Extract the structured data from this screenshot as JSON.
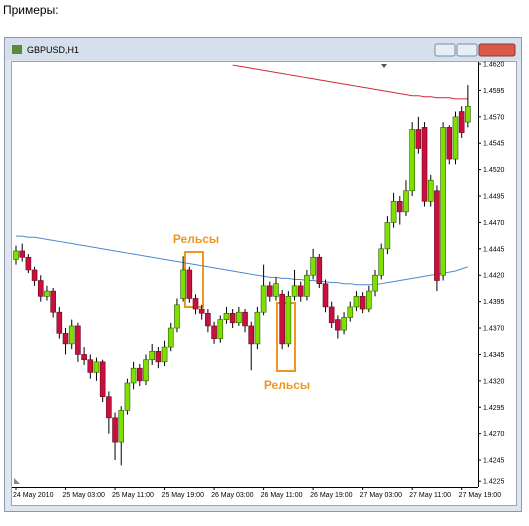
{
  "header": "Примеры:",
  "window_title": "GBPUSD,H1",
  "chart_data": {
    "type": "candlestick",
    "categories": [
      "24 May 2010",
      null,
      null,
      null,
      null,
      null,
      null,
      null,
      "25 May 03:00",
      null,
      null,
      null,
      null,
      null,
      null,
      null,
      "25 May 11:00",
      null,
      null,
      null,
      null,
      null,
      null,
      null,
      "25 May 19:00",
      null,
      null,
      null,
      null,
      null,
      null,
      null,
      "26 May 03:00",
      null,
      null,
      null,
      null,
      null,
      null,
      null,
      "26 May 11:00",
      null,
      null,
      null,
      null,
      null,
      null,
      null,
      "26 May 19:00",
      null,
      null,
      null,
      null,
      null,
      null,
      null,
      "27 May 03:00",
      null,
      null,
      null,
      null,
      null,
      null,
      null,
      "27 May 11:00",
      null,
      null,
      null,
      null,
      null,
      null,
      null,
      "27 May 19:00",
      null
    ],
    "open": [
      1.4435,
      1.4443,
      1.4437,
      1.4425,
      1.4415,
      1.44,
      1.4405,
      1.4385,
      1.4365,
      1.4355,
      1.4372,
      1.4345,
      1.434,
      1.4328,
      1.4338,
      1.4305,
      1.4285,
      1.4262,
      1.4292,
      1.4318,
      1.4332,
      1.432,
      1.434,
      1.4348,
      1.4338,
      1.4352,
      1.437,
      1.4398,
      1.4425,
      1.4398,
      1.4388,
      1.4384,
      1.4372,
      1.436,
      1.4378,
      1.4384,
      1.4375,
      1.4385,
      1.4372,
      1.4355,
      1.4385,
      1.441,
      1.44,
      1.4402,
      1.4355,
      1.44,
      1.441,
      1.44,
      1.442,
      1.4437,
      1.4412,
      1.439,
      1.4378,
      1.4368,
      1.438,
      1.439,
      1.44,
      1.4388,
      1.4405,
      1.442,
      1.4445,
      1.447,
      1.449,
      1.448,
      1.45,
      1.4558,
      1.456,
      1.449,
      1.45,
      1.442,
      1.456,
      1.453,
      1.4575,
      1.4565
    ],
    "high": [
      1.4448,
      1.445,
      1.444,
      1.4428,
      1.442,
      1.441,
      1.4408,
      1.439,
      1.437,
      1.4378,
      1.4375,
      1.4352,
      1.4345,
      1.4342,
      1.434,
      1.431,
      1.429,
      1.4296,
      1.4322,
      1.4338,
      1.4336,
      1.4345,
      1.4355,
      1.4352,
      1.4358,
      1.4375,
      1.4398,
      1.4438,
      1.4428,
      1.4402,
      1.4392,
      1.4388,
      1.4376,
      1.4382,
      1.439,
      1.4388,
      1.439,
      1.4388,
      1.4376,
      1.439,
      1.443,
      1.4414,
      1.4418,
      1.4406,
      1.4405,
      1.4425,
      1.4414,
      1.4425,
      1.4445,
      1.444,
      1.4416,
      1.4395,
      1.4382,
      1.4385,
      1.4395,
      1.4405,
      1.4404,
      1.441,
      1.4425,
      1.445,
      1.4476,
      1.4498,
      1.4495,
      1.451,
      1.4565,
      1.457,
      1.4565,
      1.4515,
      1.4505,
      1.4565,
      1.4562,
      1.4575,
      1.458,
      1.46
    ],
    "low": [
      1.443,
      1.4433,
      1.4422,
      1.441,
      1.4395,
      1.4396,
      1.438,
      1.436,
      1.4345,
      1.435,
      1.4338,
      1.4335,
      1.4322,
      1.432,
      1.43,
      1.427,
      1.4245,
      1.424,
      1.4288,
      1.4312,
      1.4315,
      1.4316,
      1.4335,
      1.4332,
      1.4334,
      1.4348,
      1.4366,
      1.4395,
      1.4394,
      1.4383,
      1.4378,
      1.4366,
      1.4355,
      1.4356,
      1.4374,
      1.437,
      1.4372,
      1.4366,
      1.433,
      1.435,
      1.4382,
      1.4395,
      1.4396,
      1.435,
      1.4352,
      1.4396,
      1.4395,
      1.4396,
      1.4416,
      1.4408,
      1.4385,
      1.437,
      1.436,
      1.4364,
      1.4376,
      1.4386,
      1.4384,
      1.4385,
      1.44,
      1.4416,
      1.444,
      1.4465,
      1.4468,
      1.4476,
      1.4495,
      1.4535,
      1.4485,
      1.4485,
      1.4405,
      1.4415,
      1.4525,
      1.4525,
      1.455,
      1.456
    ],
    "close": [
      1.4443,
      1.4437,
      1.4425,
      1.4415,
      1.44,
      1.4405,
      1.4385,
      1.4365,
      1.4355,
      1.4372,
      1.4345,
      1.434,
      1.4328,
      1.4338,
      1.4305,
      1.4285,
      1.4262,
      1.4292,
      1.4318,
      1.4332,
      1.432,
      1.434,
      1.4348,
      1.4338,
      1.4352,
      1.437,
      1.4392,
      1.4425,
      1.4398,
      1.4388,
      1.4384,
      1.4372,
      1.436,
      1.4378,
      1.4384,
      1.4375,
      1.4385,
      1.4372,
      1.4355,
      1.4385,
      1.441,
      1.44,
      1.4412,
      1.4355,
      1.44,
      1.441,
      1.44,
      1.442,
      1.4437,
      1.4412,
      1.439,
      1.4375,
      1.4368,
      1.438,
      1.439,
      1.44,
      1.4388,
      1.4405,
      1.442,
      1.4445,
      1.447,
      1.449,
      1.448,
      1.45,
      1.4558,
      1.454,
      1.449,
      1.451,
      1.4415,
      1.456,
      1.453,
      1.457,
      1.4555,
      1.458
    ],
    "up_color": "#7fe000",
    "down_color": "#c8103c",
    "lines": [
      {
        "color": "#d0283c",
        "values": [
          null,
          null,
          null,
          null,
          null,
          null,
          null,
          null,
          null,
          null,
          null,
          null,
          null,
          null,
          null,
          null,
          null,
          null,
          null,
          null,
          null,
          null,
          null,
          null,
          null,
          null,
          null,
          null,
          null,
          null,
          null,
          null,
          null,
          null,
          null,
          1.4619,
          1.4618,
          1.4617,
          1.4616,
          1.4615,
          1.4614,
          1.4613,
          1.4612,
          1.4611,
          1.461,
          1.4609,
          1.4608,
          1.4607,
          1.4606,
          1.4605,
          1.4604,
          1.4603,
          1.4602,
          1.4601,
          1.46,
          1.4599,
          1.4598,
          1.4597,
          1.4596,
          1.4595,
          1.4594,
          1.4593,
          1.4592,
          1.4591,
          1.459,
          1.459,
          1.4589,
          1.4589,
          1.4588,
          1.4588,
          1.4588,
          1.4587,
          1.4587,
          1.4587
        ]
      },
      {
        "color": "#4a8ad0",
        "values": [
          1.4457,
          1.4457,
          1.4456,
          1.4456,
          1.4455,
          1.4454,
          1.4453,
          1.4452,
          1.4451,
          1.445,
          1.4449,
          1.4448,
          1.4447,
          1.4446,
          1.4445,
          1.4444,
          1.4443,
          1.4442,
          1.4441,
          1.444,
          1.4439,
          1.4438,
          1.4437,
          1.4436,
          1.4435,
          1.4434,
          1.4433,
          1.4432,
          1.4431,
          1.443,
          1.4429,
          1.4428,
          1.4427,
          1.4426,
          1.4425,
          1.4424,
          1.4423,
          1.4422,
          1.4421,
          1.442,
          1.4419,
          1.4418,
          1.4418,
          1.4417,
          1.4417,
          1.4416,
          1.4416,
          1.4415,
          1.4415,
          1.4414,
          1.4414,
          1.4413,
          1.4413,
          1.4412,
          1.4412,
          1.4411,
          1.4411,
          1.4411,
          1.4411,
          1.4412,
          1.4413,
          1.4414,
          1.4415,
          1.4416,
          1.4417,
          1.4418,
          1.4419,
          1.442,
          1.4421,
          1.4422,
          1.4423,
          1.4424,
          1.4426,
          1.4428
        ]
      }
    ],
    "annotations": [
      "Рельсы",
      "Рельсы"
    ],
    "ylim": [
      1.42195,
      1.46219
    ],
    "yticks": [
      {
        "value": 1.462,
        "label": "1.4620"
      },
      {
        "value": 1.4595,
        "label": "1.4595"
      },
      {
        "value": 1.457,
        "label": "1.4570"
      },
      {
        "value": 1.4545,
        "label": "1.4545"
      },
      {
        "value": 1.452,
        "label": "1.4520"
      },
      {
        "value": 1.4495,
        "label": "1.4495"
      },
      {
        "value": 1.447,
        "label": "1.4470"
      },
      {
        "value": 1.4445,
        "label": "1.4445"
      },
      {
        "value": 1.442,
        "label": "1.4420"
      },
      {
        "value": 1.4395,
        "label": "1.4395"
      },
      {
        "value": 1.437,
        "label": "1.4370"
      },
      {
        "value": 1.4345,
        "label": "1.4345"
      },
      {
        "value": 1.432,
        "label": "1.4320"
      },
      {
        "value": 1.4295,
        "label": "1.4295"
      },
      {
        "value": 1.427,
        "label": "1.4270"
      },
      {
        "value": 1.4245,
        "label": "1.4245"
      },
      {
        "value": 1.4225,
        "label": "1.4225"
      }
    ]
  }
}
